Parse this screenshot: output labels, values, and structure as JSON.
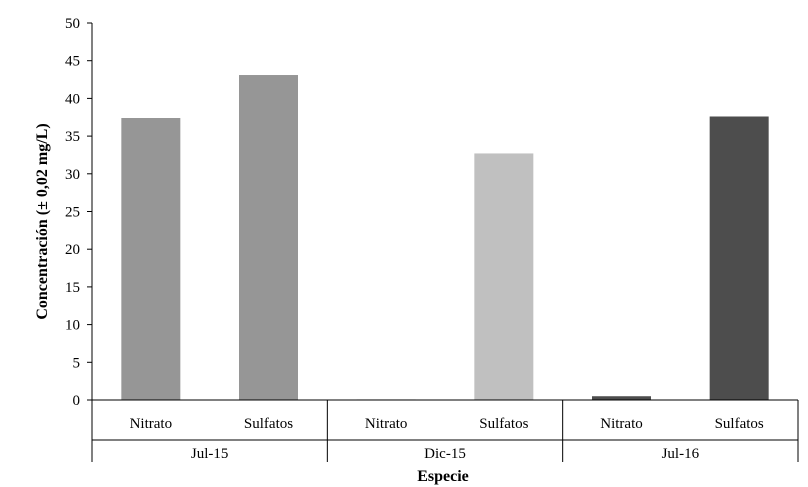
{
  "chart_data": {
    "type": "bar",
    "title": "",
    "ylabel": "Concentración (± 0,02 mg/L)",
    "xlabel": "Especie",
    "ylim": [
      0,
      50
    ],
    "yticks": [
      0,
      5,
      10,
      15,
      20,
      25,
      30,
      35,
      40,
      45,
      50
    ],
    "ytick_labels": [
      "0",
      "5",
      "10",
      "15",
      "20",
      "25",
      "30",
      "35",
      "40",
      "45",
      "50"
    ],
    "grid": false,
    "legend": "none",
    "groups": [
      {
        "label": "Jul-15",
        "bars": [
          {
            "category": "Nitrato",
            "value": 37.4,
            "color": "#969696"
          },
          {
            "category": "Sulfatos",
            "value": 43.1,
            "color": "#969696"
          }
        ]
      },
      {
        "label": "Dic-15",
        "bars": [
          {
            "category": "Nitrato",
            "value": 0.05,
            "color": "#c0c0c0"
          },
          {
            "category": "Sulfatos",
            "value": 32.7,
            "color": "#c0c0c0"
          }
        ]
      },
      {
        "label": "Jul-16",
        "bars": [
          {
            "category": "Nitrato",
            "value": 0.5,
            "color": "#4d4d4d"
          },
          {
            "category": "Sulfatos",
            "value": 37.6,
            "color": "#4d4d4d"
          }
        ]
      }
    ]
  }
}
